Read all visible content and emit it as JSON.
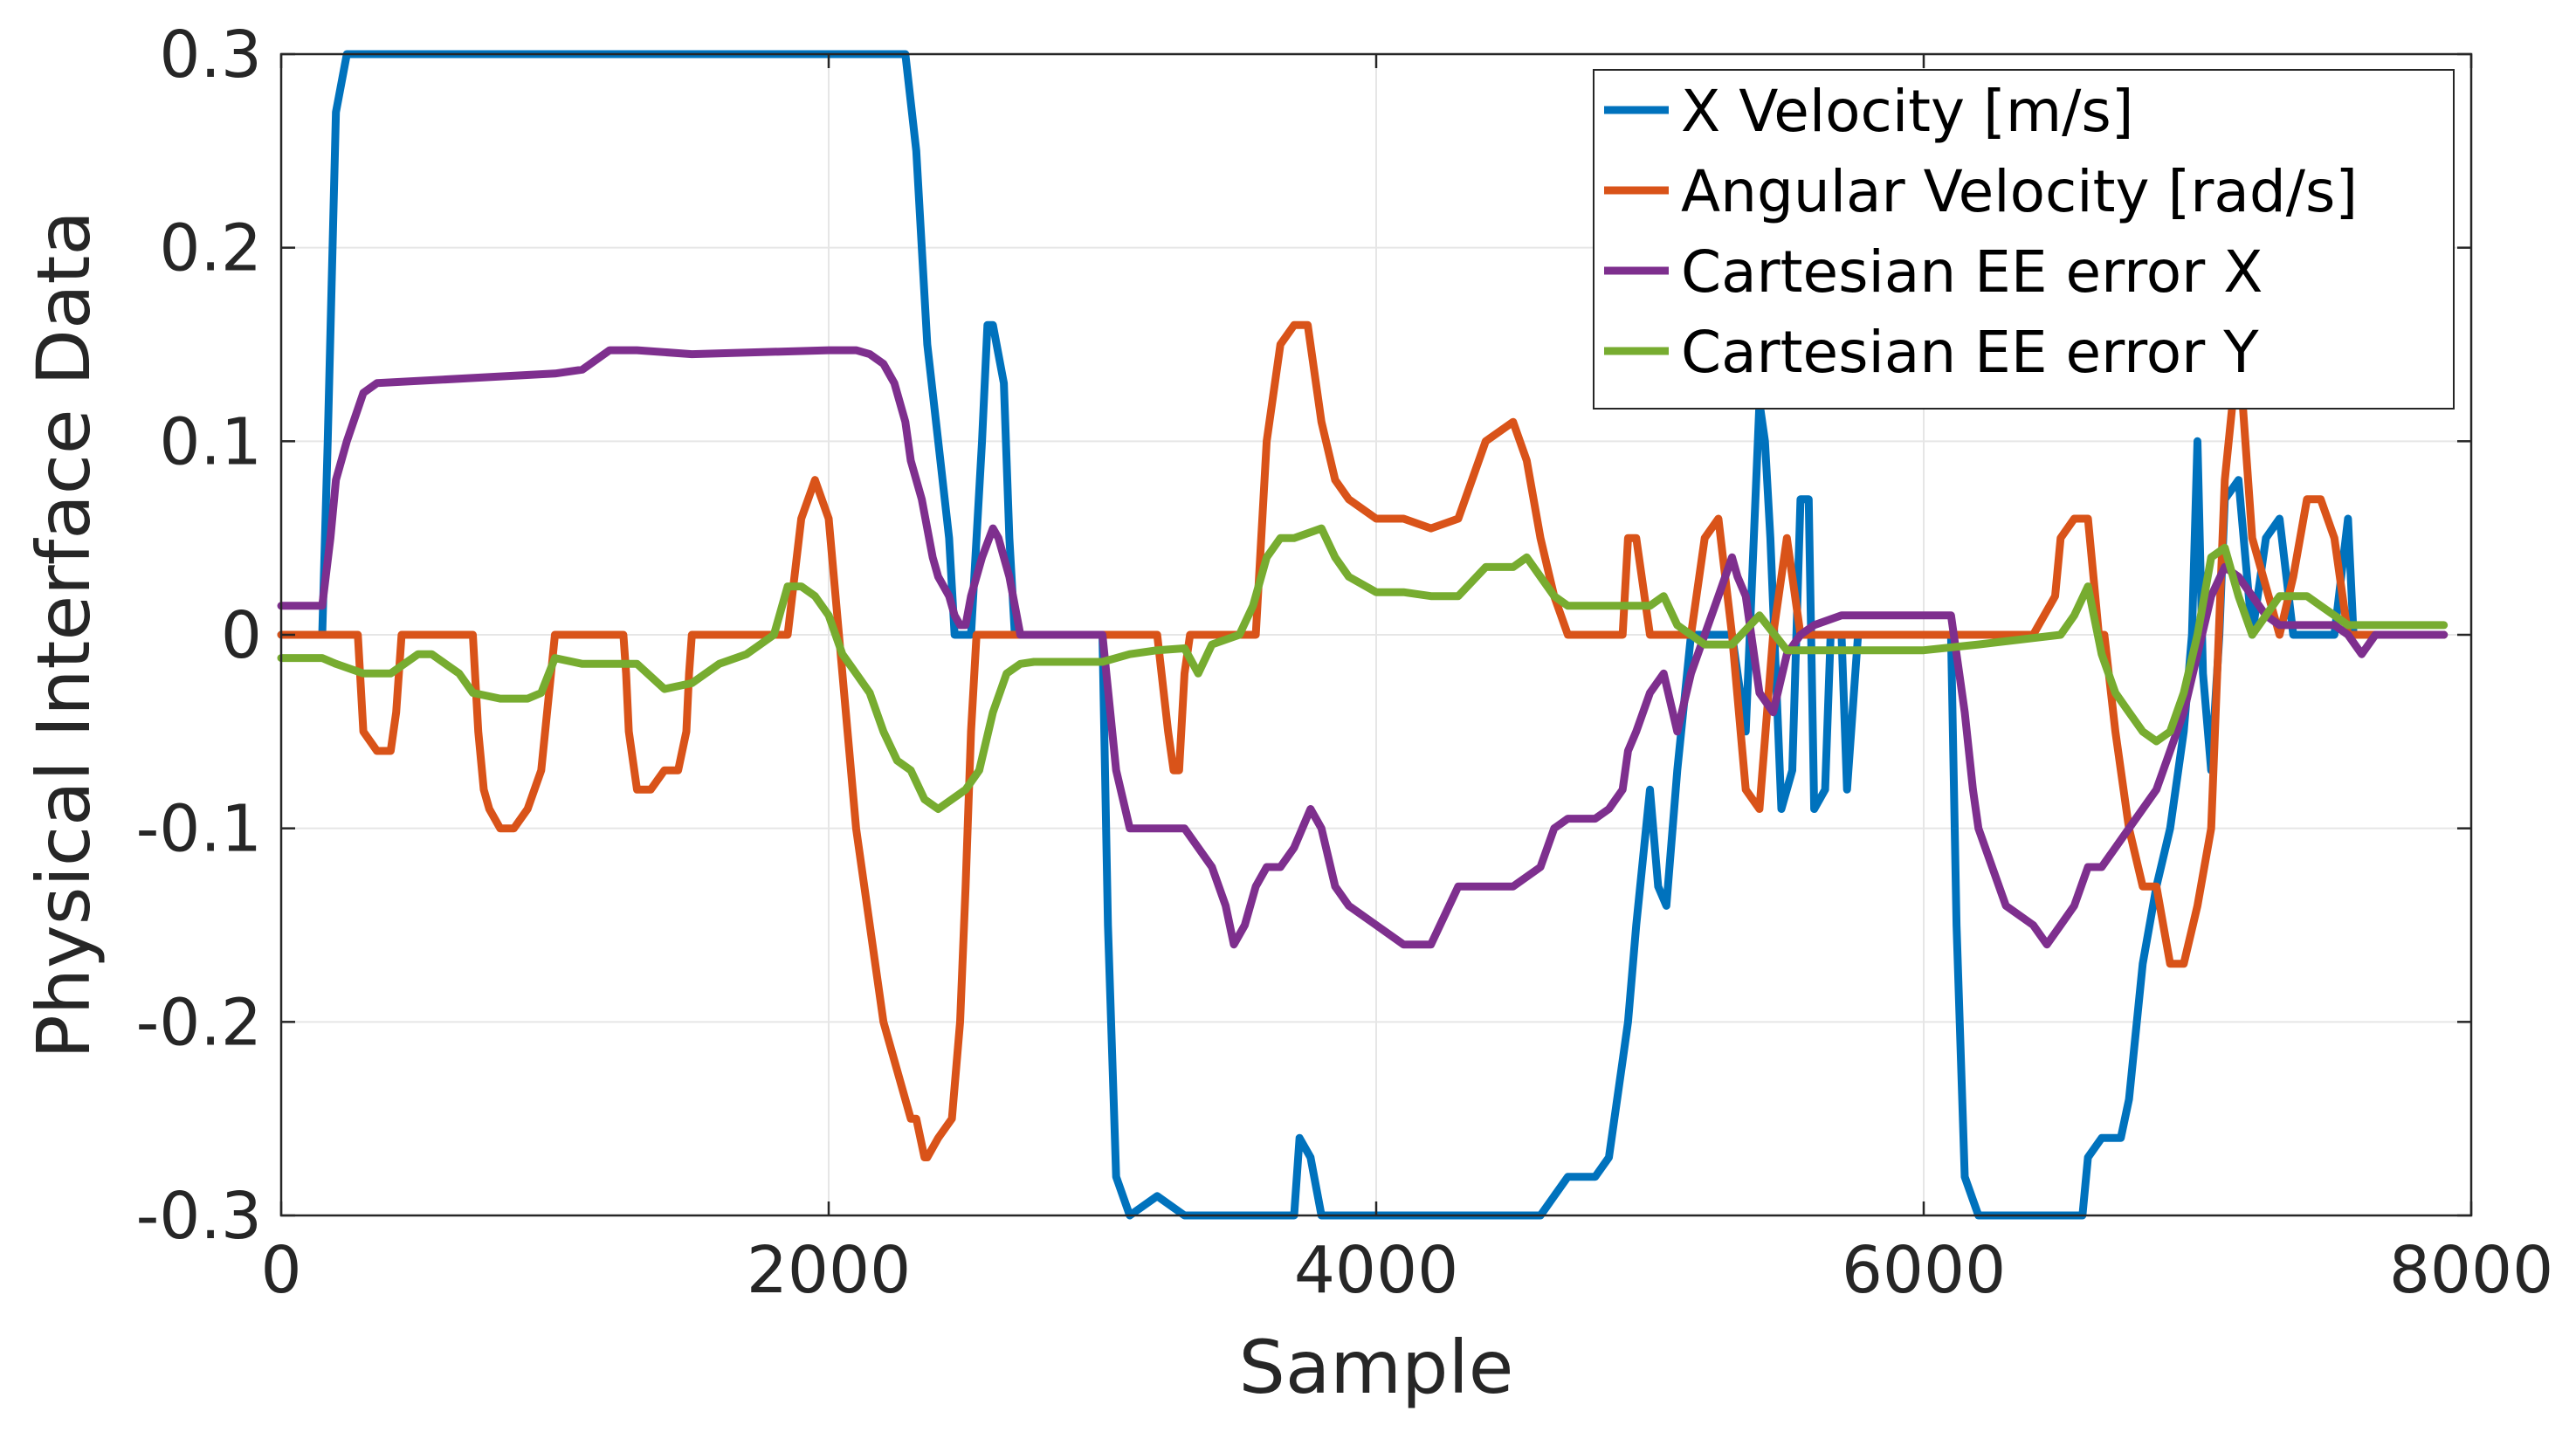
{
  "chart_data": {
    "type": "line",
    "title": "",
    "xlabel": "Sample",
    "ylabel": "Physical Interface Data",
    "xlim": [
      0,
      8000
    ],
    "ylim": [
      -0.3,
      0.3
    ],
    "xticks": [
      0,
      2000,
      4000,
      6000,
      8000
    ],
    "xtick_labels": [
      "0",
      "2000",
      "4000",
      "6000",
      "8000"
    ],
    "yticks": [
      0.3,
      0.2,
      0.1,
      0,
      -0.1,
      -0.2,
      -0.3
    ],
    "ytick_labels": [
      "0.3",
      "0.2",
      "0.1",
      "0",
      "-0.1",
      "-0.2",
      "-0.3"
    ],
    "grid": true,
    "legend_position": "top-right",
    "series": [
      {
        "name": "X Velocity [m/s]",
        "color": "#0072BD",
        "x": [
          0,
          150,
          170,
          200,
          240,
          2280,
          2320,
          2360,
          2400,
          2440,
          2460,
          2480,
          2520,
          2560,
          2580,
          2600,
          2640,
          2660,
          2680,
          2720,
          2760,
          2800,
          2900,
          3000,
          3020,
          3050,
          3100,
          3200,
          3300,
          3400,
          3500,
          3700,
          3720,
          3760,
          3800,
          3850,
          3900,
          4000,
          4200,
          4400,
          4600,
          4650,
          4700,
          4800,
          4850,
          4900,
          4920,
          4950,
          5000,
          5030,
          5060,
          5100,
          5150,
          5200,
          5300,
          5350,
          5400,
          5420,
          5440,
          5480,
          5520,
          5550,
          5580,
          5600,
          5640,
          5660,
          5700,
          5720,
          5760,
          5780,
          5800,
          6100,
          6120,
          6150,
          6200,
          6300,
          6500,
          6550,
          6580,
          6600,
          6650,
          6700,
          6720,
          6750,
          6800,
          6850,
          6900,
          6950,
          6980,
          7000,
          7020,
          7050,
          7080,
          7100,
          7150,
          7200,
          7250,
          7300,
          7350,
          7400,
          7500,
          7550,
          7570,
          7600,
          7650,
          7900
        ],
        "y": [
          0,
          0,
          0.1,
          0.27,
          0.3,
          0.3,
          0.25,
          0.15,
          0.1,
          0.05,
          0,
          0,
          0,
          0.1,
          0.16,
          0.16,
          0.13,
          0.05,
          0,
          0,
          0,
          0,
          0,
          0,
          -0.15,
          -0.28,
          -0.3,
          -0.29,
          -0.3,
          -0.3,
          -0.3,
          -0.3,
          -0.26,
          -0.27,
          -0.3,
          -0.3,
          -0.3,
          -0.3,
          -0.3,
          -0.3,
          -0.3,
          -0.29,
          -0.28,
          -0.28,
          -0.27,
          -0.22,
          -0.2,
          -0.15,
          -0.08,
          -0.13,
          -0.14,
          -0.07,
          0,
          0,
          0,
          -0.05,
          0.12,
          0.1,
          0.05,
          -0.09,
          -0.07,
          0.07,
          0.07,
          -0.09,
          -0.08,
          0,
          0,
          -0.08,
          0,
          0,
          0,
          0,
          -0.15,
          -0.28,
          -0.3,
          -0.3,
          -0.3,
          -0.3,
          -0.3,
          -0.27,
          -0.26,
          -0.26,
          -0.26,
          -0.24,
          -0.17,
          -0.13,
          -0.1,
          -0.05,
          0,
          0.1,
          -0.02,
          -0.07,
          0,
          0.07,
          0.08,
          0,
          0.05,
          0.06,
          0,
          0,
          0,
          0.06,
          0,
          0,
          0,
          0
        ]
      },
      {
        "name": "Angular Velocity [rad/s]",
        "color": "#D95319",
        "x": [
          0,
          270,
          280,
          300,
          350,
          400,
          420,
          430,
          440,
          450,
          700,
          720,
          740,
          760,
          800,
          850,
          900,
          950,
          1000,
          1050,
          1060,
          1200,
          1250,
          1260,
          1270,
          1300,
          1350,
          1400,
          1450,
          1480,
          1490,
          1500,
          1550,
          1600,
          1700,
          1750,
          1800,
          1850,
          1900,
          1950,
          2000,
          2100,
          2200,
          2300,
          2320,
          2350,
          2360,
          2400,
          2450,
          2480,
          2500,
          2520,
          2540,
          2560,
          2580,
          2620,
          2700,
          3200,
          3240,
          3260,
          3280,
          3300,
          3320,
          3350,
          3500,
          3560,
          3600,
          3650,
          3700,
          3750,
          3800,
          3850,
          3900,
          4000,
          4100,
          4200,
          4300,
          4400,
          4500,
          4550,
          4600,
          4650,
          4700,
          4900,
          4920,
          4950,
          5000,
          5150,
          5200,
          5250,
          5300,
          5350,
          5400,
          5450,
          5500,
          5550,
          5600,
          5650,
          5700,
          6400,
          6480,
          6500,
          6550,
          6600,
          6620,
          6640,
          6660,
          6700,
          6750,
          6800,
          6850,
          6900,
          6950,
          7000,
          7050,
          7100,
          7150,
          7200,
          7300,
          7350,
          7400,
          7450,
          7500,
          7520,
          7550,
          7600,
          7900
        ],
        "y": [
          0,
          0,
          0,
          -0.05,
          -0.06,
          -0.06,
          -0.04,
          -0.02,
          0,
          0,
          0,
          -0.05,
          -0.08,
          -0.09,
          -0.1,
          -0.1,
          -0.09,
          -0.07,
          0,
          0,
          0,
          0,
          0,
          -0.02,
          -0.05,
          -0.08,
          -0.08,
          -0.07,
          -0.07,
          -0.05,
          -0.02,
          0,
          0,
          0,
          0,
          0,
          0,
          0,
          0.06,
          0.08,
          0.06,
          -0.1,
          -0.2,
          -0.25,
          -0.25,
          -0.27,
          -0.27,
          -0.26,
          -0.25,
          -0.2,
          -0.13,
          -0.05,
          0,
          0,
          0,
          0,
          0,
          0,
          -0.05,
          -0.07,
          -0.07,
          -0.02,
          0,
          0,
          0,
          0,
          0.1,
          0.15,
          0.16,
          0.16,
          0.11,
          0.08,
          0.07,
          0.06,
          0.06,
          0.055,
          0.06,
          0.1,
          0.11,
          0.09,
          0.05,
          0.02,
          0,
          0,
          0.05,
          0.05,
          0,
          0,
          0.05,
          0.06,
          0,
          -0.08,
          -0.09,
          0,
          0.05,
          0,
          0,
          0,
          0,
          0,
          0.02,
          0.05,
          0.06,
          0.06,
          0.03,
          0,
          0,
          -0.05,
          -0.1,
          -0.13,
          -0.13,
          -0.17,
          -0.17,
          -0.14,
          -0.1,
          0.08,
          0.15,
          0.05,
          0,
          0.03,
          0.07,
          0.07,
          0.05,
          0.03,
          0,
          0,
          0
        ]
      },
      {
        "name": "Cartesian EE error X",
        "color": "#7E2F8E",
        "x": [
          0,
          150,
          180,
          200,
          240,
          300,
          350,
          1000,
          1100,
          1200,
          1300,
          1500,
          2000,
          2100,
          2150,
          2200,
          2240,
          2280,
          2300,
          2340,
          2380,
          2400,
          2440,
          2460,
          2480,
          2500,
          2520,
          2560,
          2600,
          2620,
          2640,
          2660,
          2700,
          2750,
          2900,
          3000,
          3050,
          3100,
          3200,
          3300,
          3400,
          3450,
          3480,
          3520,
          3560,
          3600,
          3650,
          3700,
          3760,
          3800,
          3850,
          3900,
          4000,
          4100,
          4200,
          4300,
          4400,
          4500,
          4600,
          4650,
          4700,
          4800,
          4850,
          4900,
          4920,
          4950,
          5000,
          5050,
          5100,
          5150,
          5200,
          5250,
          5300,
          5320,
          5350,
          5400,
          5450,
          5500,
          5550,
          5600,
          5700,
          5800,
          6000,
          6100,
          6150,
          6180,
          6200,
          6250,
          6300,
          6400,
          6450,
          6500,
          6550,
          6600,
          6650,
          6700,
          6750,
          6800,
          6850,
          6900,
          6950,
          7000,
          7050,
          7100,
          7150,
          7200,
          7250,
          7300,
          7400,
          7500,
          7550,
          7600,
          7650,
          7700,
          7900
        ],
        "y": [
          0.015,
          0.015,
          0.05,
          0.08,
          0.1,
          0.125,
          0.13,
          0.135,
          0.137,
          0.147,
          0.147,
          0.145,
          0.147,
          0.147,
          0.145,
          0.14,
          0.13,
          0.11,
          0.09,
          0.07,
          0.04,
          0.03,
          0.02,
          0.01,
          0.005,
          0.005,
          0.02,
          0.04,
          0.055,
          0.05,
          0.04,
          0.03,
          0,
          0,
          0,
          0,
          -0.07,
          -0.1,
          -0.1,
          -0.1,
          -0.12,
          -0.14,
          -0.16,
          -0.15,
          -0.13,
          -0.12,
          -0.12,
          -0.11,
          -0.09,
          -0.1,
          -0.13,
          -0.14,
          -0.15,
          -0.16,
          -0.16,
          -0.13,
          -0.13,
          -0.13,
          -0.12,
          -0.1,
          -0.095,
          -0.095,
          -0.09,
          -0.08,
          -0.06,
          -0.05,
          -0.03,
          -0.02,
          -0.05,
          -0.02,
          0,
          0.02,
          0.04,
          0.03,
          0.02,
          -0.03,
          -0.04,
          -0.01,
          0,
          0.005,
          0.01,
          0.01,
          0.01,
          0.01,
          -0.04,
          -0.08,
          -0.1,
          -0.12,
          -0.14,
          -0.15,
          -0.16,
          -0.15,
          -0.14,
          -0.12,
          -0.12,
          -0.11,
          -0.1,
          -0.09,
          -0.08,
          -0.06,
          -0.04,
          -0.01,
          0.02,
          0.035,
          0.03,
          0.02,
          0.01,
          0.005,
          0.005,
          0.005,
          0,
          -0.01,
          0,
          0,
          0
        ]
      },
      {
        "name": "Cartesian EE error Y",
        "color": "#77AC30",
        "x": [
          0,
          150,
          200,
          300,
          400,
          500,
          550,
          600,
          650,
          700,
          800,
          900,
          950,
          1000,
          1100,
          1300,
          1400,
          1500,
          1600,
          1700,
          1800,
          1850,
          1900,
          1950,
          2000,
          2050,
          2100,
          2150,
          2200,
          2250,
          2300,
          2350,
          2400,
          2450,
          2500,
          2550,
          2600,
          2650,
          2700,
          2750,
          2900,
          3000,
          3100,
          3200,
          3300,
          3350,
          3400,
          3500,
          3550,
          3600,
          3650,
          3700,
          3800,
          3850,
          3900,
          4000,
          4100,
          4200,
          4300,
          4400,
          4500,
          4550,
          4600,
          4650,
          4700,
          4800,
          4900,
          5000,
          5050,
          5100,
          5150,
          5200,
          5300,
          5400,
          5500,
          5600,
          5700,
          6000,
          6200,
          6500,
          6550,
          6600,
          6650,
          6700,
          6750,
          6800,
          6850,
          6900,
          6950,
          7000,
          7050,
          7100,
          7150,
          7200,
          7250,
          7300,
          7350,
          7400,
          7450,
          7500,
          7550,
          7600,
          7900
        ],
        "y": [
          -0.012,
          -0.012,
          -0.015,
          -0.02,
          -0.02,
          -0.01,
          -0.01,
          -0.015,
          -0.02,
          -0.03,
          -0.033,
          -0.033,
          -0.03,
          -0.012,
          -0.015,
          -0.015,
          -0.028,
          -0.025,
          -0.015,
          -0.01,
          0,
          0.025,
          0.025,
          0.02,
          0.01,
          -0.01,
          -0.02,
          -0.03,
          -0.05,
          -0.065,
          -0.07,
          -0.085,
          -0.09,
          -0.085,
          -0.08,
          -0.07,
          -0.04,
          -0.02,
          -0.015,
          -0.014,
          -0.014,
          -0.014,
          -0.01,
          -0.008,
          -0.007,
          -0.02,
          -0.005,
          0,
          0.015,
          0.04,
          0.05,
          0.05,
          0.055,
          0.04,
          0.03,
          0.022,
          0.022,
          0.02,
          0.02,
          0.035,
          0.035,
          0.04,
          0.03,
          0.02,
          0.015,
          0.015,
          0.015,
          0.015,
          0.02,
          0.005,
          0,
          -0.005,
          -0.005,
          0.01,
          -0.008,
          -0.008,
          -0.008,
          -0.008,
          -0.005,
          0,
          0.01,
          0.025,
          -0.01,
          -0.03,
          -0.04,
          -0.05,
          -0.055,
          -0.05,
          -0.03,
          0,
          0.04,
          0.045,
          0.02,
          0,
          0.01,
          0.02,
          0.02,
          0.02,
          0.015,
          0.01,
          0.005,
          0.005,
          0.005
        ]
      }
    ]
  }
}
